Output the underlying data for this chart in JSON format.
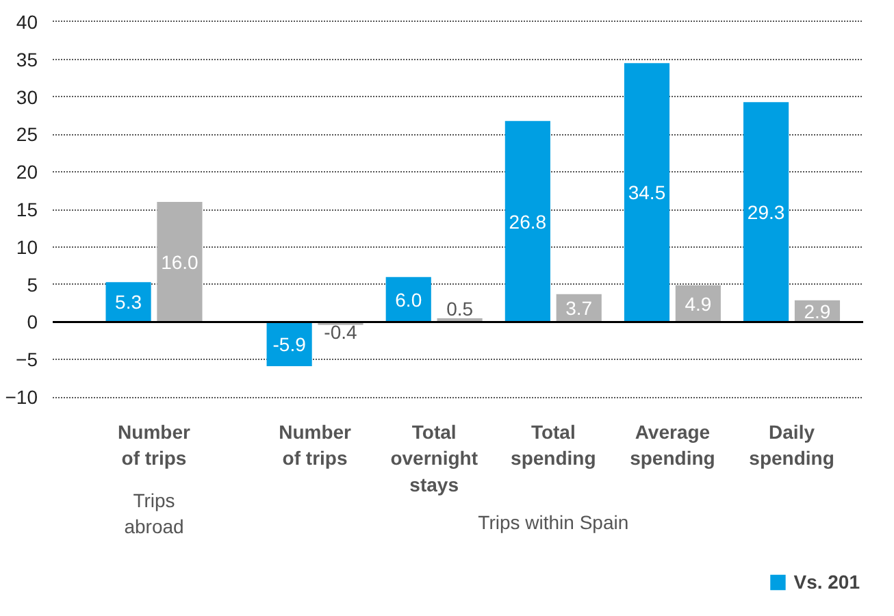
{
  "chart_data": {
    "type": "bar",
    "categories": [
      "Number\nof trips",
      "Number\nof trips",
      "Total\novernight\nstays",
      "Total\nspending",
      "Average\nspending",
      "Daily\nspending"
    ],
    "series": [
      {
        "name": "Vs. 201",
        "color": "#009fe3",
        "values": [
          5.3,
          -5.9,
          6.0,
          26.8,
          34.5,
          29.3
        ],
        "value_labels": [
          "5.3",
          "-5.9",
          "6.0",
          "26.8",
          "34.5",
          "29.3"
        ]
      },
      {
        "color": "#b2b2b2",
        "values": [
          16.0,
          -0.4,
          0.5,
          3.7,
          4.9,
          2.9
        ],
        "value_labels": [
          "16.0",
          "-0.4",
          "0.5",
          "3.7",
          "4.9",
          "2.9"
        ]
      }
    ],
    "ylim": [
      -10,
      40
    ],
    "yticks": [
      -10,
      -5,
      0,
      5,
      10,
      15,
      20,
      25,
      30,
      35,
      40
    ],
    "annotations": [
      "Trips\nabroad",
      "Trips within Spain"
    ],
    "grid": "y",
    "legend": "bottom right"
  }
}
